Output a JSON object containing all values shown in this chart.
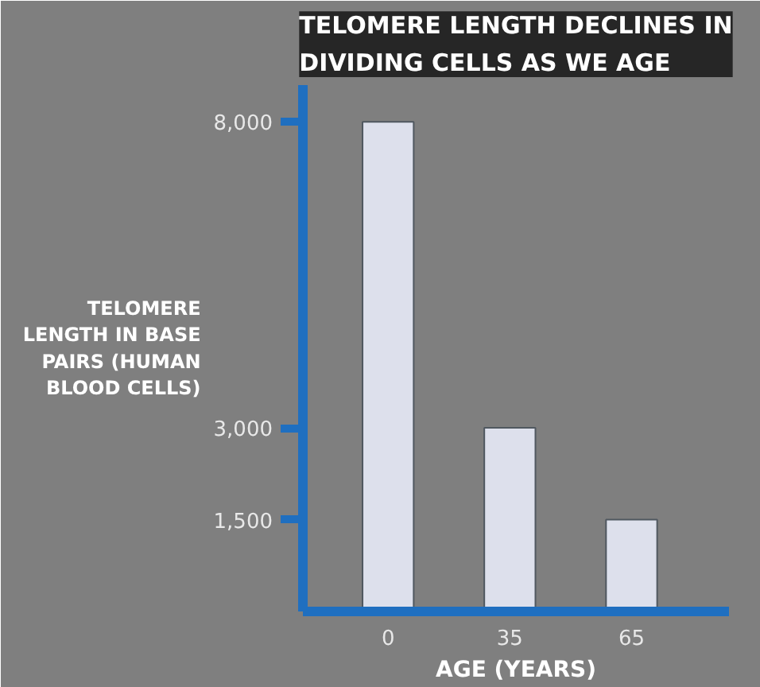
{
  "chart_data": {
    "type": "bar",
    "title": "TELOMERE LENGTH DECLINES IN DIVIDING CELLS AS WE AGE",
    "ylabel": "TELOMERE LENGTH IN BASE PAIRS (HUMAN BLOOD CELLS)",
    "xlabel": "AGE (YEARS)",
    "categories": [
      "0",
      "35",
      "65"
    ],
    "values": [
      8000,
      3000,
      1500
    ],
    "color": "#dde0ec",
    "ylim": [
      0,
      8600
    ],
    "yticks": [
      {
        "value": 1500,
        "label": "1,500"
      },
      {
        "value": 3000,
        "label": "3,000"
      },
      {
        "value": 8000,
        "label": "8,000"
      }
    ],
    "grid": false
  }
}
